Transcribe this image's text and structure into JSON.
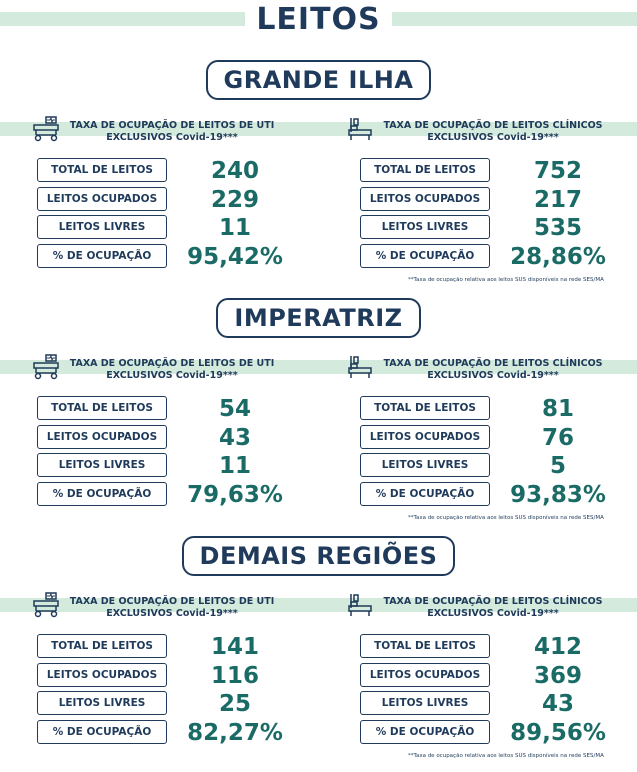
{
  "title": "LEITOS",
  "regions": [
    {
      "name": "GRANDE ILHA",
      "panels": [
        {
          "heading": [
            "TAXA DE OCUPAÇÃO DE LEITOS DE UTI",
            "EXCLUSIVOS Covid-19***"
          ],
          "rows": [
            {
              "label": "TOTAL DE LEITOS",
              "value": "240"
            },
            {
              "label": "LEITOS OCUPADOS",
              "value": "229"
            },
            {
              "label": "LEITOS LIVRES",
              "value": "11"
            },
            {
              "label": "% DE OCUPAÇÃO",
              "value": "95,42%"
            }
          ]
        },
        {
          "heading": [
            "TAXA DE OCUPAÇÃO DE LEITOS CLÍNICOS",
            "EXCLUSIVOS Covid-19***"
          ],
          "rows": [
            {
              "label": "TOTAL DE LEITOS",
              "value": "752"
            },
            {
              "label": "LEITOS OCUPADOS",
              "value": "217"
            },
            {
              "label": "LEITOS LIVRES",
              "value": "535"
            },
            {
              "label": "% DE OCUPAÇÃO",
              "value": "28,86%"
            }
          ]
        }
      ],
      "footnote": "**Taxa de ocupação relativa aos leitos SUS disponíveis na rede SES/MA"
    },
    {
      "name": "IMPERATRIZ",
      "panels": [
        {
          "heading": [
            "TAXA DE OCUPAÇÃO DE LEITOS DE UTI",
            "EXCLUSIVOS Covid-19***"
          ],
          "rows": [
            {
              "label": "TOTAL DE LEITOS",
              "value": "54"
            },
            {
              "label": "LEITOS OCUPADOS",
              "value": "43"
            },
            {
              "label": "LEITOS LIVRES",
              "value": "11"
            },
            {
              "label": "% DE OCUPAÇÃO",
              "value": "79,63%"
            }
          ]
        },
        {
          "heading": [
            "TAXA DE OCUPAÇÃO DE LEITOS CLÍNICOS",
            "EXCLUSIVOS Covid-19***"
          ],
          "rows": [
            {
              "label": "TOTAL DE LEITOS",
              "value": "81"
            },
            {
              "label": "LEITOS OCUPADOS",
              "value": "76"
            },
            {
              "label": "LEITOS LIVRES",
              "value": "5"
            },
            {
              "label": "% DE OCUPAÇÃO",
              "value": "93,83%"
            }
          ]
        }
      ],
      "footnote": "**Taxa de ocupação relativa aos leitos SUS disponíveis na rede SES/MA"
    },
    {
      "name": "DEMAIS REGIÕES",
      "panels": [
        {
          "heading": [
            "TAXA DE OCUPAÇÃO DE LEITOS DE UTI",
            "EXCLUSIVOS Covid-19***"
          ],
          "rows": [
            {
              "label": "TOTAL DE LEITOS",
              "value": "141"
            },
            {
              "label": "LEITOS OCUPADOS",
              "value": "116"
            },
            {
              "label": "LEITOS LIVRES",
              "value": "25"
            },
            {
              "label": "% DE OCUPAÇÃO",
              "value": "82,27%"
            }
          ]
        },
        {
          "heading": [
            "TAXA DE OCUPAÇÃO DE LEITOS CLÍNICOS",
            "EXCLUSIVOS Covid-19***"
          ],
          "rows": [
            {
              "label": "TOTAL DE LEITOS",
              "value": "412"
            },
            {
              "label": "LEITOS OCUPADOS",
              "value": "369"
            },
            {
              "label": "LEITOS LIVRES",
              "value": "43"
            },
            {
              "label": "% DE OCUPAÇÃO",
              "value": "89,56%"
            }
          ]
        }
      ],
      "footnote": "**Taxa de ocupação relativa aos leitos SUS disponíveis na rede SES/MA"
    }
  ]
}
